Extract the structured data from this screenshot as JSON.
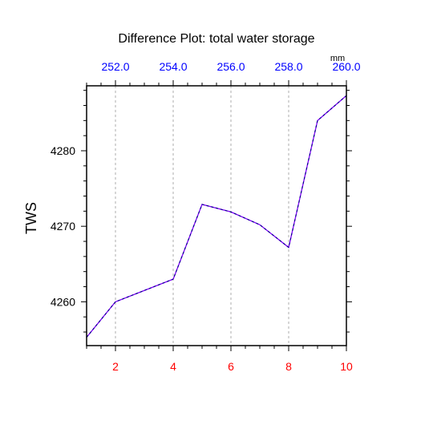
{
  "chart_data": {
    "type": "line",
    "title": "Difference Plot: total water storage",
    "xlabel": "",
    "ylabel": "TWS",
    "top_axis_unit": "mm",
    "x": [
      1,
      2,
      3,
      4,
      5,
      6,
      7,
      8,
      9,
      10
    ],
    "xlim": [
      1,
      10
    ],
    "ylim": [
      4254.2,
      4288.6
    ],
    "x_ticks": [
      2,
      4,
      6,
      8,
      10
    ],
    "x_tick_labels": [
      "2",
      "4",
      "6",
      "8",
      "10"
    ],
    "top_ticks": [
      2,
      4,
      6,
      8,
      10
    ],
    "top_tick_labels": [
      "252.0",
      "254.0",
      "256.0",
      "258.0",
      "260.0"
    ],
    "y_ticks": [
      4260,
      4270,
      4280
    ],
    "y_tick_labels": [
      "4260",
      "4270",
      "4280"
    ],
    "series": [
      {
        "values": [
          4255.3,
          4260.0,
          4261.5,
          4263.0,
          4272.9,
          4271.9,
          4270.2,
          4267.2,
          4284.0,
          4287.3
        ],
        "color": "#8000ff",
        "overlay_color": "#000080",
        "style": "dashed"
      }
    ],
    "grid": "vertical-dashed",
    "colors": {
      "bottom_ticks": "#ff0000",
      "top_ticks": "#0000ff",
      "grid": "#999999"
    }
  }
}
